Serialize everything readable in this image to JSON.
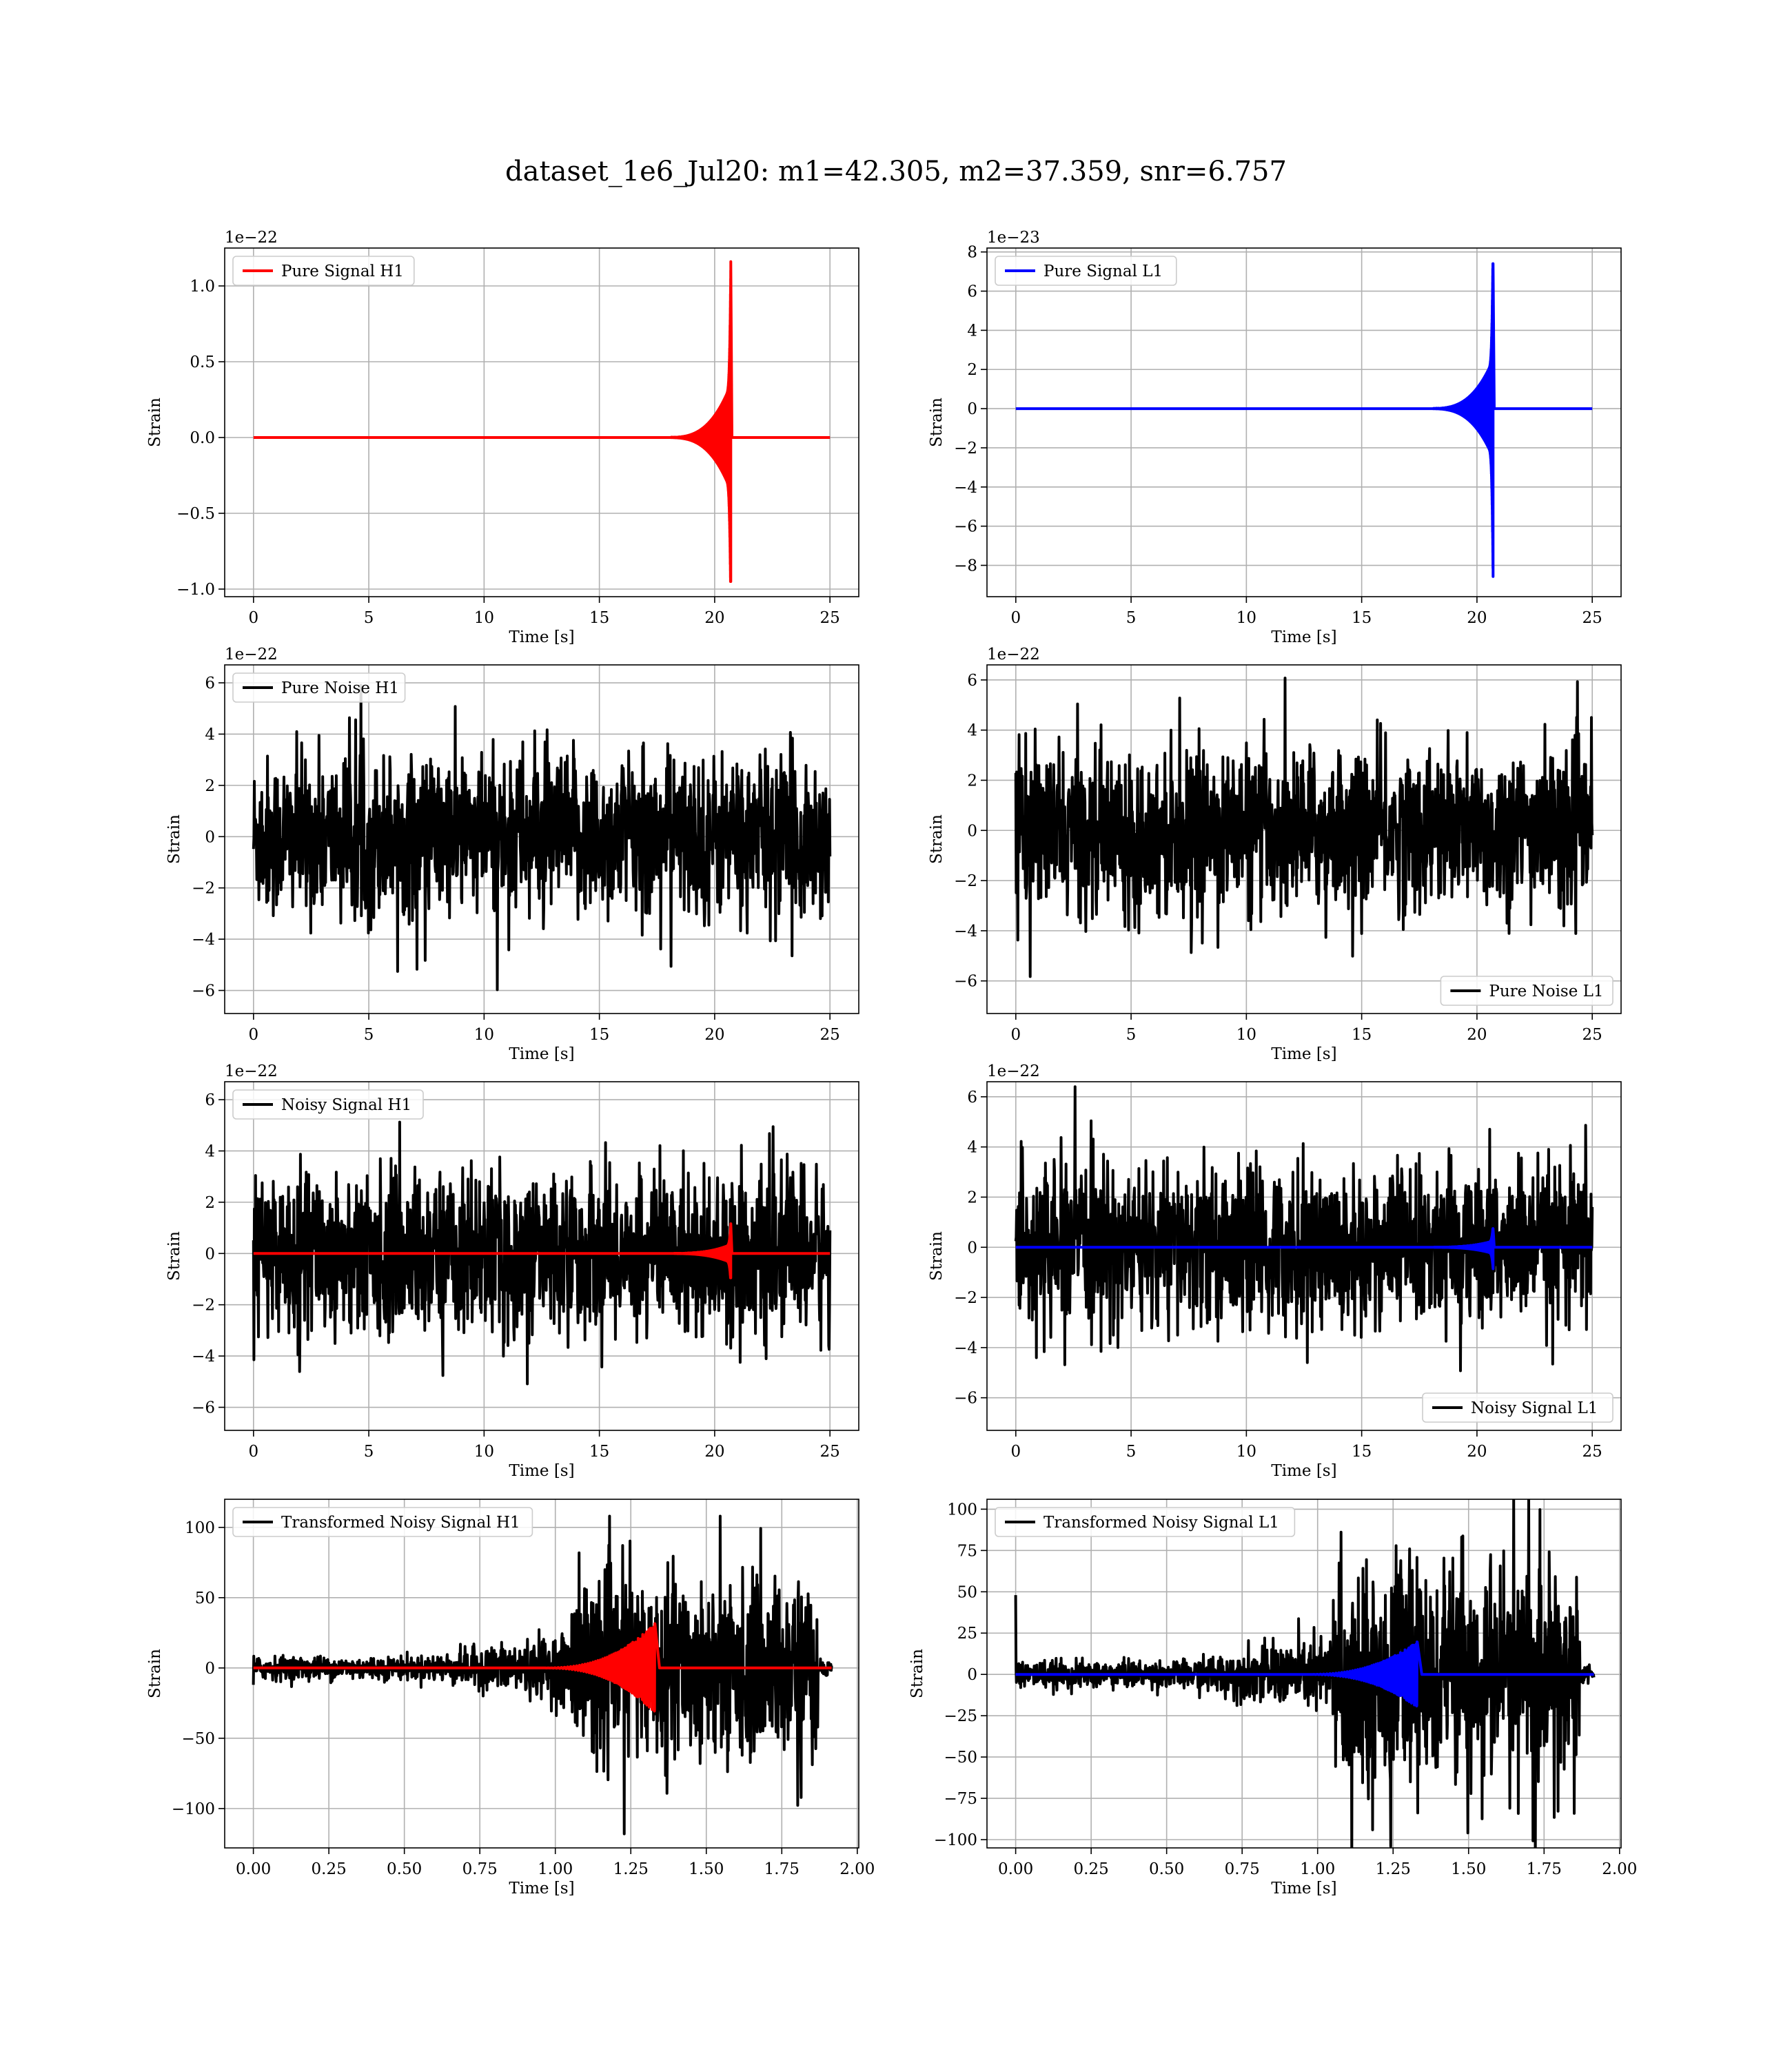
{
  "figure": {
    "title": "dataset_1e6_Jul20: m1=42.305, m2=37.359, snr=6.757"
  },
  "colors": {
    "h1_signal": "#ff0000",
    "l1_signal": "#0000ff",
    "noise": "#000000",
    "grid": "#b0b0b0"
  },
  "chart_data": [
    {
      "type": "line",
      "series": [
        {
          "name": "Pure Signal H1",
          "kind": "chirp",
          "amp": 0.35,
          "peak_pos": 1.16,
          "peak_neg": -0.95,
          "t_merge": 20.7,
          "color": "#ff0000"
        }
      ],
      "xlabel": "Time [s]",
      "ylabel": "Strain",
      "offset_label": "1e−22",
      "xlim": [
        -1.25,
        26.25
      ],
      "ylim": [
        -1.05,
        1.25
      ],
      "xticks": [
        0,
        5,
        10,
        15,
        20,
        25
      ],
      "xtick_labels": [
        "0",
        "5",
        "10",
        "15",
        "20",
        "25"
      ],
      "yticks": [
        -1.0,
        -0.5,
        0.0,
        0.5,
        1.0
      ],
      "ytick_labels": [
        "−1.0",
        "−0.5",
        "0.0",
        "0.5",
        "1.0"
      ],
      "grid": true,
      "legend": "upper left"
    },
    {
      "type": "line",
      "series": [
        {
          "name": "Pure Signal L1",
          "kind": "chirp",
          "amp": 2.5,
          "peak_pos": 7.4,
          "peak_neg": -8.8,
          "t_merge": 20.7,
          "color": "#0000ff"
        }
      ],
      "xlabel": "Time [s]",
      "ylabel": "Strain",
      "offset_label": "1e−23",
      "xlim": [
        -1.25,
        26.25
      ],
      "ylim": [
        -9.6,
        8.2
      ],
      "xticks": [
        0,
        5,
        10,
        15,
        20,
        25
      ],
      "xtick_labels": [
        "0",
        "5",
        "10",
        "15",
        "20",
        "25"
      ],
      "yticks": [
        -8,
        -6,
        -4,
        -2,
        0,
        2,
        4,
        6,
        8
      ],
      "ytick_labels": [
        "−8",
        "−6",
        "−4",
        "−2",
        "0",
        "2",
        "4",
        "6",
        "8"
      ],
      "grid": true,
      "legend": "upper left"
    },
    {
      "type": "line",
      "series": [
        {
          "name": "Pure Noise H1",
          "kind": "noise",
          "color": "#000000"
        }
      ],
      "xlabel": "Time [s]",
      "ylabel": "Strain",
      "offset_label": "1e−22",
      "xlim": [
        -1.25,
        26.25
      ],
      "ylim": [
        -6.9,
        6.7
      ],
      "xticks": [
        0,
        5,
        10,
        15,
        20,
        25
      ],
      "xtick_labels": [
        "0",
        "5",
        "10",
        "15",
        "20",
        "25"
      ],
      "yticks": [
        -6,
        -4,
        -2,
        0,
        2,
        4,
        6
      ],
      "ytick_labels": [
        "−6",
        "−4",
        "−2",
        "0",
        "2",
        "4",
        "6"
      ],
      "grid": true,
      "legend": "upper left"
    },
    {
      "type": "line",
      "series": [
        {
          "name": "Pure Noise L1",
          "kind": "noise",
          "color": "#000000"
        }
      ],
      "xlabel": "Time [s]",
      "ylabel": "Strain",
      "offset_label": "1e−22",
      "xlim": [
        -1.25,
        26.25
      ],
      "ylim": [
        -7.3,
        6.6
      ],
      "xticks": [
        0,
        5,
        10,
        15,
        20,
        25
      ],
      "xtick_labels": [
        "0",
        "5",
        "10",
        "15",
        "20",
        "25"
      ],
      "yticks": [
        -6,
        -4,
        -2,
        0,
        2,
        4,
        6
      ],
      "ytick_labels": [
        "−6",
        "−4",
        "−2",
        "0",
        "2",
        "4",
        "6"
      ],
      "grid": true,
      "legend": "lower right"
    },
    {
      "type": "line",
      "series": [
        {
          "name": "Noisy Signal H1",
          "kind": "noise",
          "color": "#000000"
        },
        {
          "name": "",
          "kind": "chirp",
          "amp": 0.35,
          "peak_pos": 1.16,
          "peak_neg": -0.95,
          "t_merge": 20.7,
          "color": "#ff0000"
        }
      ],
      "xlabel": "Time [s]",
      "ylabel": "Strain",
      "offset_label": "1e−22",
      "xlim": [
        -1.25,
        26.25
      ],
      "ylim": [
        -6.9,
        6.7
      ],
      "xticks": [
        0,
        5,
        10,
        15,
        20,
        25
      ],
      "xtick_labels": [
        "0",
        "5",
        "10",
        "15",
        "20",
        "25"
      ],
      "yticks": [
        -6,
        -4,
        -2,
        0,
        2,
        4,
        6
      ],
      "ytick_labels": [
        "−6",
        "−4",
        "−2",
        "0",
        "2",
        "4",
        "6"
      ],
      "grid": true,
      "legend": "upper left"
    },
    {
      "type": "line",
      "series": [
        {
          "name": "Noisy Signal L1",
          "kind": "noise",
          "color": "#000000"
        },
        {
          "name": "",
          "kind": "chirp",
          "amp": 0.25,
          "peak_pos": 0.74,
          "peak_neg": -0.88,
          "t_merge": 20.7,
          "color": "#0000ff"
        }
      ],
      "xlabel": "Time [s]",
      "ylabel": "Strain",
      "offset_label": "1e−22",
      "xlim": [
        -1.25,
        26.25
      ],
      "ylim": [
        -7.3,
        6.6
      ],
      "xticks": [
        0,
        5,
        10,
        15,
        20,
        25
      ],
      "xtick_labels": [
        "0",
        "5",
        "10",
        "15",
        "20",
        "25"
      ],
      "yticks": [
        -6,
        -4,
        -2,
        0,
        2,
        4,
        6
      ],
      "ytick_labels": [
        "−6",
        "−4",
        "−2",
        "0",
        "2",
        "4",
        "6"
      ],
      "grid": true,
      "legend": "lower right"
    },
    {
      "type": "line",
      "series": [
        {
          "name": "Transformed Noisy Signal H1",
          "kind": "tnoise",
          "color": "#000000"
        },
        {
          "name": "",
          "kind": "tchirp",
          "amp": 32,
          "t_merge": 1.33,
          "color": "#ff0000"
        }
      ],
      "xlabel": "Time [s]",
      "ylabel": "Strain",
      "offset_label": "",
      "xlim": [
        -0.095,
        2.005
      ],
      "ylim": [
        -128,
        120
      ],
      "xticks": [
        0,
        0.25,
        0.5,
        0.75,
        1.0,
        1.25,
        1.5,
        1.75,
        2.0
      ],
      "xtick_labels": [
        "0.00",
        "0.25",
        "0.50",
        "0.75",
        "1.00",
        "1.25",
        "1.50",
        "1.75",
        "2.00"
      ],
      "yticks": [
        -100,
        -50,
        0,
        50,
        100
      ],
      "ytick_labels": [
        "−100",
        "−50",
        "0",
        "50",
        "100"
      ],
      "grid": true,
      "legend": "upper left"
    },
    {
      "type": "line",
      "series": [
        {
          "name": "Transformed Noisy Signal L1",
          "kind": "tnoise",
          "color": "#000000"
        },
        {
          "name": "",
          "kind": "tchirp",
          "amp": 20,
          "t_merge": 1.33,
          "color": "#0000ff"
        }
      ],
      "xlabel": "Time [s]",
      "ylabel": "Strain",
      "offset_label": "",
      "xlim": [
        -0.095,
        2.005
      ],
      "ylim": [
        -105,
        106
      ],
      "xticks": [
        0,
        0.25,
        0.5,
        0.75,
        1.0,
        1.25,
        1.5,
        1.75,
        2.0
      ],
      "xtick_labels": [
        "0.00",
        "0.25",
        "0.50",
        "0.75",
        "1.00",
        "1.25",
        "1.50",
        "1.75",
        "2.00"
      ],
      "yticks": [
        -100,
        -75,
        -50,
        -25,
        0,
        25,
        50,
        75,
        100
      ],
      "ytick_labels": [
        "−100",
        "−75",
        "−50",
        "−25",
        "0",
        "25",
        "50",
        "75",
        "100"
      ],
      "grid": true,
      "legend": "upper left"
    }
  ]
}
